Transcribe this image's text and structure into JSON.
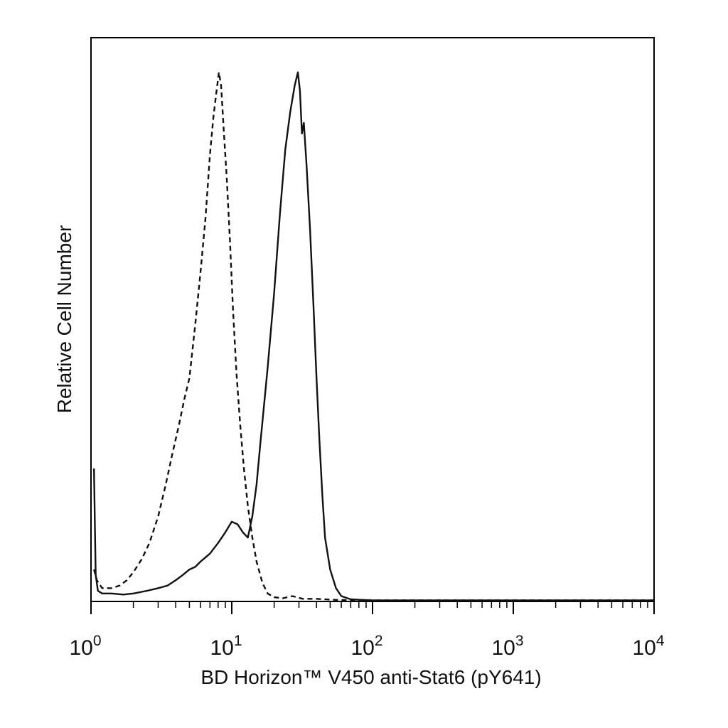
{
  "chart_data": {
    "type": "line",
    "title": "",
    "xlabel": "BD Horizon™ V450 anti-Stat6 (pY641)",
    "ylabel": "Relative Cell Number",
    "x_scale": "log",
    "xlim": [
      1,
      10000
    ],
    "ylim": [
      0,
      1.0
    ],
    "grid": false,
    "legend": "none",
    "x_ticks": [
      {
        "base": "10",
        "exp": "0",
        "value": 1
      },
      {
        "base": "10",
        "exp": "1",
        "value": 10
      },
      {
        "base": "10",
        "exp": "2",
        "value": 100
      },
      {
        "base": "10",
        "exp": "3",
        "value": 1000
      },
      {
        "base": "10",
        "exp": "4",
        "value": 10000
      }
    ],
    "series": [
      {
        "style": "dashed",
        "color": "#111111",
        "x": [
          1.05,
          1.1,
          1.2,
          1.4,
          1.6,
          1.8,
          2.0,
          2.3,
          2.6,
          3.0,
          3.4,
          3.8,
          4.2,
          4.6,
          5.0,
          5.5,
          6.0,
          6.5,
          7.0,
          7.4,
          7.8,
          8.1,
          8.4,
          8.8,
          9.2,
          9.7,
          10.2,
          10.8,
          11.5,
          12.2,
          13.0,
          14.0,
          15.0,
          16.5,
          18.0,
          20.0,
          23.0,
          27.0,
          32.0,
          40.0,
          55.0,
          80.0,
          10000
        ],
        "y": [
          0.06,
          0.04,
          0.025,
          0.025,
          0.03,
          0.04,
          0.055,
          0.08,
          0.11,
          0.16,
          0.22,
          0.28,
          0.33,
          0.38,
          0.42,
          0.52,
          0.62,
          0.72,
          0.84,
          0.91,
          0.96,
          0.995,
          0.97,
          0.88,
          0.8,
          0.68,
          0.55,
          0.43,
          0.33,
          0.25,
          0.18,
          0.12,
          0.075,
          0.035,
          0.015,
          0.008,
          0.006,
          0.01,
          0.005,
          0.005,
          0.003,
          0.002,
          0.002
        ]
      },
      {
        "style": "solid",
        "color": "#111111",
        "x": [
          1.05,
          1.08,
          1.12,
          1.2,
          1.4,
          1.7,
          2.0,
          2.5,
          3.0,
          3.5,
          4.0,
          4.5,
          5.0,
          5.5,
          6.0,
          7.0,
          8.0,
          9.0,
          10.0,
          11.0,
          12.0,
          13.0,
          14.0,
          15.0,
          16.0,
          18.0,
          20.0,
          22.0,
          24.0,
          26.0,
          28.0,
          29.5,
          30.5,
          31.5,
          32.5,
          34.0,
          36.0,
          38.0,
          40.0,
          42.0,
          44.0,
          46.0,
          50.0,
          55.0,
          60.0,
          70.0,
          100.0,
          10000
        ],
        "y": [
          0.25,
          0.05,
          0.02,
          0.015,
          0.015,
          0.013,
          0.015,
          0.02,
          0.025,
          0.03,
          0.04,
          0.05,
          0.06,
          0.065,
          0.075,
          0.09,
          0.11,
          0.13,
          0.15,
          0.145,
          0.13,
          0.12,
          0.16,
          0.22,
          0.3,
          0.44,
          0.58,
          0.73,
          0.85,
          0.92,
          0.97,
          0.995,
          0.96,
          0.88,
          0.9,
          0.82,
          0.7,
          0.56,
          0.42,
          0.3,
          0.2,
          0.12,
          0.06,
          0.025,
          0.01,
          0.004,
          0.002,
          0.002
        ]
      }
    ]
  }
}
